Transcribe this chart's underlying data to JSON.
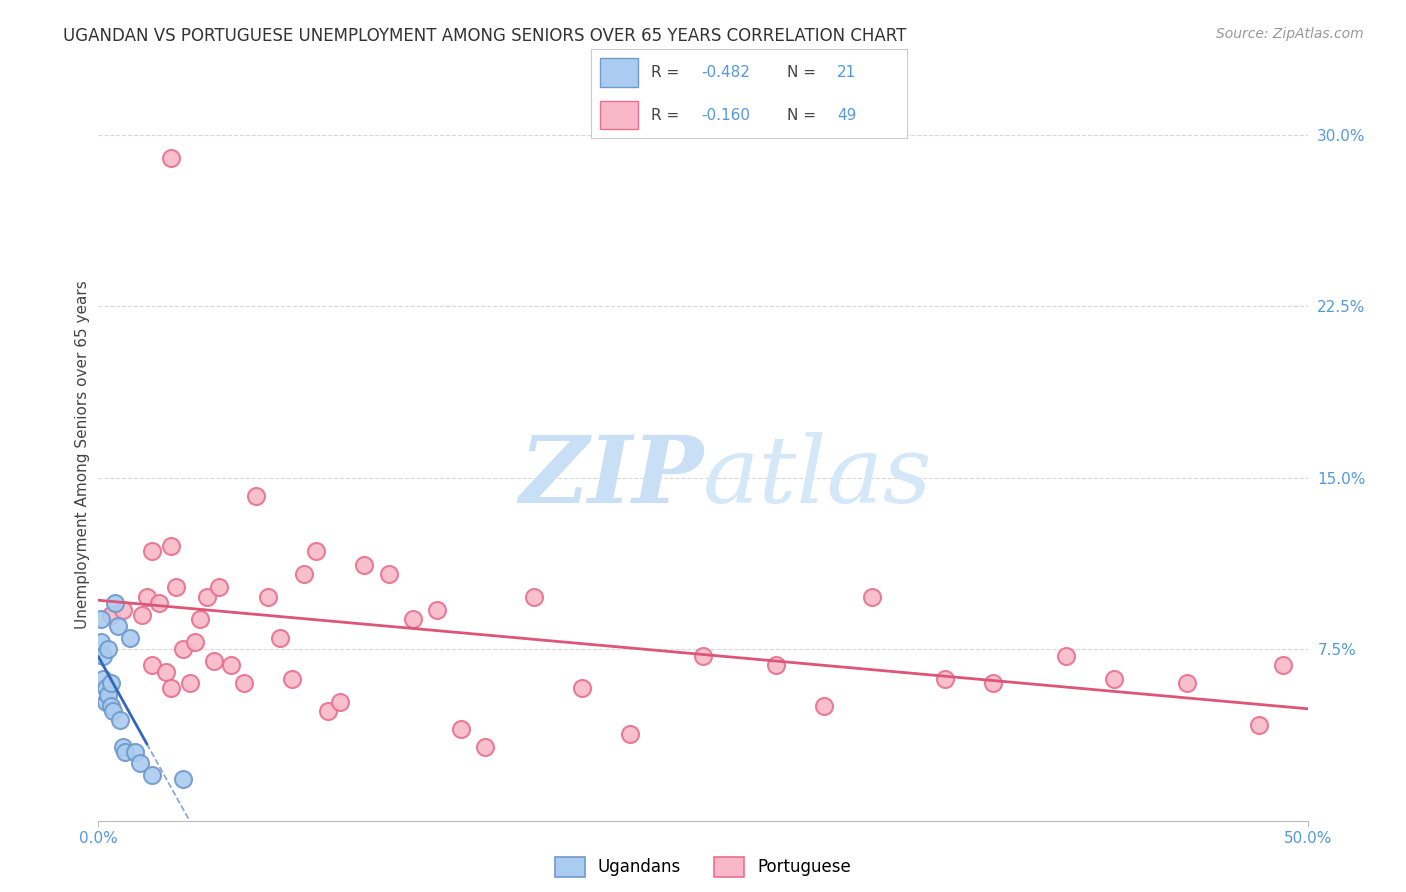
{
  "title": "UGANDAN VS PORTUGUESE UNEMPLOYMENT AMONG SENIORS OVER 65 YEARS CORRELATION CHART",
  "source": "Source: ZipAtlas.com",
  "ylabel": "Unemployment Among Seniors over 65 years",
  "xlim": [
    0.0,
    0.5
  ],
  "ylim": [
    0.0,
    0.32
  ],
  "xticks": [
    0.0,
    0.1,
    0.2,
    0.3,
    0.4,
    0.5
  ],
  "xticklabels": [
    "0.0%",
    "",
    "",
    "",
    "",
    "50.0%"
  ],
  "yticks": [
    0.075,
    0.15,
    0.225,
    0.3
  ],
  "yticklabels": [
    "7.5%",
    "15.0%",
    "22.5%",
    "30.0%"
  ],
  "ugandan_x": [
    0.001,
    0.001,
    0.002,
    0.002,
    0.003,
    0.003,
    0.004,
    0.004,
    0.005,
    0.005,
    0.006,
    0.007,
    0.008,
    0.009,
    0.01,
    0.011,
    0.013,
    0.015,
    0.017,
    0.022,
    0.035
  ],
  "ugandan_y": [
    0.088,
    0.078,
    0.062,
    0.072,
    0.058,
    0.052,
    0.055,
    0.075,
    0.05,
    0.06,
    0.048,
    0.095,
    0.085,
    0.044,
    0.032,
    0.03,
    0.08,
    0.03,
    0.025,
    0.02,
    0.018
  ],
  "portuguese_x": [
    0.03,
    0.005,
    0.01,
    0.018,
    0.02,
    0.022,
    0.022,
    0.025,
    0.028,
    0.03,
    0.032,
    0.035,
    0.038,
    0.04,
    0.042,
    0.045,
    0.048,
    0.05,
    0.055,
    0.06,
    0.065,
    0.07,
    0.075,
    0.08,
    0.085,
    0.09,
    0.095,
    0.1,
    0.11,
    0.12,
    0.13,
    0.14,
    0.15,
    0.16,
    0.18,
    0.2,
    0.22,
    0.25,
    0.28,
    0.3,
    0.32,
    0.35,
    0.37,
    0.4,
    0.42,
    0.45,
    0.48,
    0.49,
    0.03
  ],
  "portuguese_y": [
    0.12,
    0.09,
    0.092,
    0.09,
    0.098,
    0.068,
    0.118,
    0.095,
    0.065,
    0.058,
    0.102,
    0.075,
    0.06,
    0.078,
    0.088,
    0.098,
    0.07,
    0.102,
    0.068,
    0.06,
    0.142,
    0.098,
    0.08,
    0.062,
    0.108,
    0.118,
    0.048,
    0.052,
    0.112,
    0.108,
    0.088,
    0.092,
    0.04,
    0.032,
    0.098,
    0.058,
    0.038,
    0.072,
    0.068,
    0.05,
    0.098,
    0.062,
    0.06,
    0.072,
    0.062,
    0.06,
    0.042,
    0.068,
    0.29
  ],
  "ugandan_color": "#aaccf0",
  "portuguese_color": "#f8b8c8",
  "ugandan_edge": "#7099cc",
  "portuguese_edge": "#e87090",
  "trend_ugandan_color": "#3366bb",
  "trend_portuguese_color": "#dd5577",
  "background_color": "#ffffff",
  "grid_color": "#d8d8d8",
  "legend_ugandan_color": "#aaccf0",
  "legend_ugandan_edge": "#7099cc",
  "legend_portuguese_color": "#f8b8c8",
  "legend_portuguese_edge": "#e87090"
}
